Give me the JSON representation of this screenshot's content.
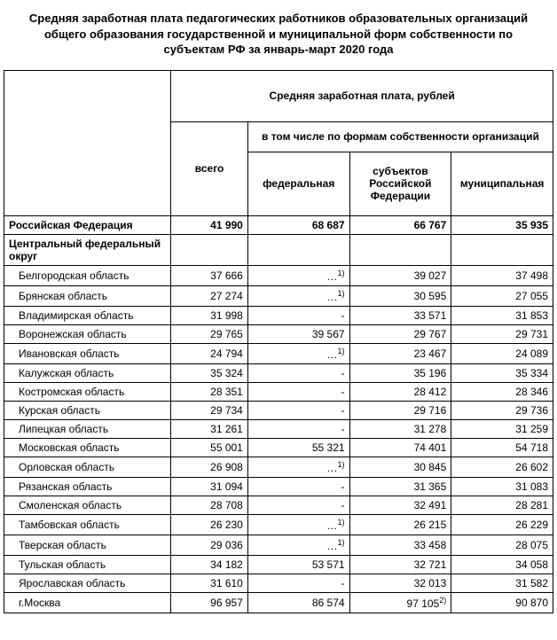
{
  "title": "Средняя заработная плата педагогических работников образовательных организаций общего образования государственной и муниципальной форм собственности по субъектам РФ за январь-март 2020 года",
  "headers": {
    "main": "Средняя заработная плата, рублей",
    "total": "всего",
    "forms": "в том числе по формам собственности организаций",
    "federal": "федеральная",
    "subjects": "субъектов Российской Федерации",
    "municipal": "муниципальная"
  },
  "russia": {
    "name": "Российская Федерация",
    "total": "41 990",
    "federal": "68 687",
    "subjects": "66 767",
    "municipal": "35 935"
  },
  "district": "Центральный федеральный округ",
  "rows": [
    {
      "name": "Белгородская область",
      "total": "37 666",
      "federal": "…",
      "note_f": "1)",
      "subjects": "39 027",
      "municipal": "37 498"
    },
    {
      "name": "Брянская область",
      "total": "27 274",
      "federal": "…",
      "note_f": "1)",
      "subjects": "30 595",
      "municipal": "27 055"
    },
    {
      "name": "Владимирская область",
      "total": "31 998",
      "federal": "-",
      "note_f": "",
      "subjects": "33 571",
      "municipal": "31 853"
    },
    {
      "name": "Воронежская область",
      "total": "29 765",
      "federal": "39 567",
      "note_f": "",
      "subjects": "29 767",
      "municipal": "29 731"
    },
    {
      "name": "Ивановская область",
      "total": "24 794",
      "federal": "…",
      "note_f": "1)",
      "subjects": "23 467",
      "municipal": "24 089"
    },
    {
      "name": "Калужская область",
      "total": "35 324",
      "federal": "-",
      "note_f": "",
      "subjects": "35 196",
      "municipal": "35 334"
    },
    {
      "name": "Костромская область",
      "total": "28 351",
      "federal": "-",
      "note_f": "",
      "subjects": "28 412",
      "municipal": "28 346"
    },
    {
      "name": "Курская область",
      "total": "29 734",
      "federal": "-",
      "note_f": "",
      "subjects": "29 716",
      "municipal": "29 736"
    },
    {
      "name": "Липецкая область",
      "total": "31 261",
      "federal": "-",
      "note_f": "",
      "subjects": "31 278",
      "municipal": "31 259"
    },
    {
      "name": "Московская область",
      "total": "55 001",
      "federal": "55 321",
      "note_f": "",
      "subjects": "74 401",
      "municipal": "54 718"
    },
    {
      "name": "Орловская область",
      "total": "26 908",
      "federal": "…",
      "note_f": "1)",
      "subjects": "30 845",
      "municipal": "26 602"
    },
    {
      "name": "Рязанская область",
      "total": "31 094",
      "federal": "-",
      "note_f": "",
      "subjects": "31 365",
      "municipal": "31 083"
    },
    {
      "name": "Смоленская область",
      "total": "28 708",
      "federal": "-",
      "note_f": "",
      "subjects": "32 491",
      "municipal": "28 281"
    },
    {
      "name": "Тамбовская область",
      "total": "26 230",
      "federal": "…",
      "note_f": "1)",
      "subjects": "26 215",
      "municipal": "26 229"
    },
    {
      "name": "Тверская область",
      "total": "29 036",
      "federal": "…",
      "note_f": "1)",
      "subjects": "33 458",
      "municipal": "28 075"
    },
    {
      "name": "Тульская область",
      "total": "34 182",
      "federal": "53 571",
      "note_f": "",
      "subjects": "32 721",
      "municipal": "34 058"
    },
    {
      "name": "Ярославская область",
      "total": "31 610",
      "federal": "-",
      "note_f": "",
      "subjects": "32 013",
      "municipal": "31 582"
    },
    {
      "name": "г.Москва",
      "total": "96 957",
      "federal": "86 574",
      "note_f": "",
      "subjects": "97 105",
      "note_s": "2)",
      "municipal": "90 870"
    }
  ],
  "colors": {
    "bg": "#ffffff",
    "border": "#000000",
    "text": "#000000"
  },
  "fontsize": {
    "title": 13,
    "body": 12
  }
}
